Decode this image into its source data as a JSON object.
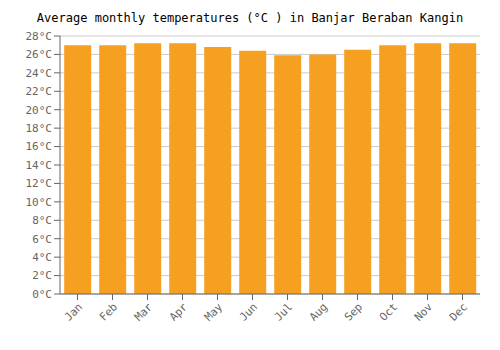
{
  "chart_data": {
    "type": "bar",
    "title": "Average monthly temperatures (°C ) in Banjar Beraban Kangin",
    "categories": [
      "Jan",
      "Feb",
      "Mar",
      "Apr",
      "May",
      "Jun",
      "Jul",
      "Aug",
      "Sep",
      "Oct",
      "Nov",
      "Dec"
    ],
    "values": [
      27.0,
      27.0,
      27.2,
      27.2,
      26.8,
      26.4,
      25.9,
      26.0,
      26.5,
      27.0,
      27.2,
      27.2
    ],
    "color": "#F5A020",
    "ylim": [
      0,
      28
    ],
    "yticks": [
      {
        "value": 0,
        "label": "0°C"
      },
      {
        "value": 2,
        "label": "2°C"
      },
      {
        "value": 4,
        "label": "4°C"
      },
      {
        "value": 6,
        "label": "6°C"
      },
      {
        "value": 8,
        "label": "8°C"
      },
      {
        "value": 10,
        "label": "10°C"
      },
      {
        "value": 12,
        "label": "12°C"
      },
      {
        "value": 14,
        "label": "14°C"
      },
      {
        "value": 16,
        "label": "16°C"
      },
      {
        "value": 18,
        "label": "18°C"
      },
      {
        "value": 20,
        "label": "20°C"
      },
      {
        "value": 22,
        "label": "22°C"
      },
      {
        "value": 24,
        "label": "24°C"
      },
      {
        "value": 26,
        "label": "26°C"
      },
      {
        "value": 28,
        "label": "28°C"
      }
    ],
    "grid": true
  }
}
